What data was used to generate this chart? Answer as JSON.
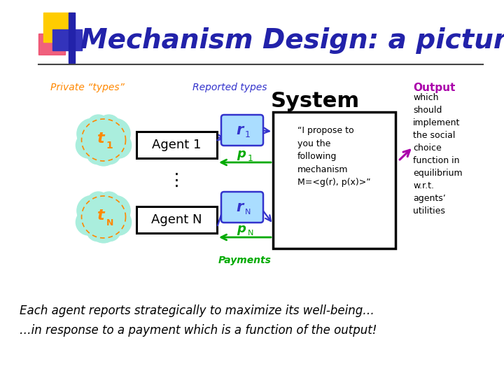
{
  "title": "Mechanism Design: a picture",
  "title_color": "#2222aa",
  "bg_color": "#ffffff",
  "private_types_label": "Private “types”",
  "reported_types_label": "Reported types",
  "system_label": "System",
  "output_label": "Output",
  "output_text": "which\nshould\nimplement\nthe social\nchoice\nfunction in\nequilibrium\nw.r.t.\nagents’\nutilities",
  "system_text": "“I propose to\nyou the\nfollowing\nmechanism\nM=<g(r), p(x)>”",
  "bottom_text1": "Each agent reports strategically to maximize its well-being…",
  "bottom_text2": "…in response to a payment which is a function of the output!",
  "agent1_label": "Agent 1",
  "agentN_label": "Agent N",
  "orange_color": "#ff8800",
  "blue_color": "#3333cc",
  "green_color": "#00aa00",
  "purple_color": "#aa00aa",
  "cloud_color": "#aaeedd",
  "rbox_color": "#aaddff",
  "agent_box_color": "#ffffff",
  "system_box_color": "#ffffff"
}
